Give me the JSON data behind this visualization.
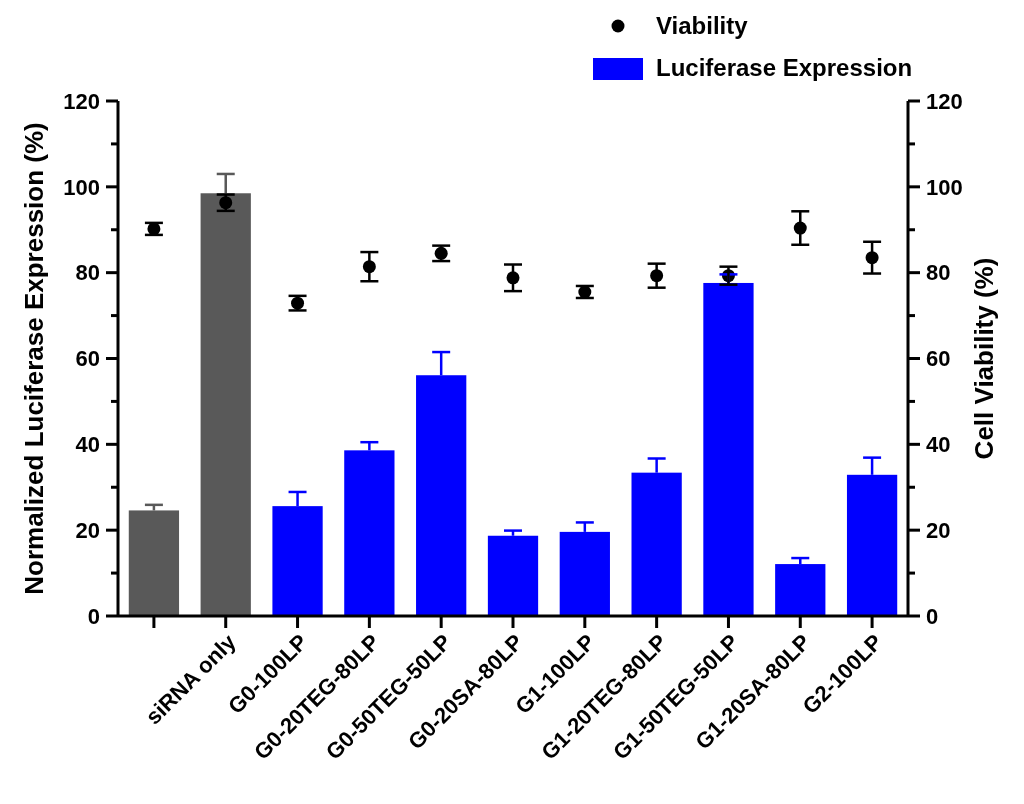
{
  "chart_data": {
    "type": "bar",
    "ylabel": "Normalized Luciferase Expression (%)",
    "y2label": "Cell Viability  (%)",
    "categories": [
      null,
      "siRNA only",
      "G0-100LP",
      "G0-20TEG-80LP",
      "G0-50TEG-50LP",
      "G0-20SA-80LP",
      "G1-100LP",
      "G1-20TEG-80LP",
      "G1-50TEG-50LP",
      "G1-20SA-80LP",
      "G2-100LP"
    ],
    "series": [
      {
        "name": "Luciferase Expression",
        "color": "#0000ff",
        "colors": [
          "#595959",
          "#595959",
          "#0000ff",
          "#0000ff",
          "#0000ff",
          "#0000ff",
          "#0000ff",
          "#0000ff",
          "#0000ff",
          "#0000ff",
          "#0000ff"
        ],
        "values": [
          24.6,
          98.5,
          25.6,
          38.6,
          56.1,
          18.7,
          19.6,
          33.4,
          77.6,
          12.1,
          32.9
        ],
        "errors": [
          1.3,
          4.5,
          3.3,
          1.9,
          5.4,
          1.2,
          2.2,
          3.3,
          2,
          1.4,
          4
        ]
      },
      {
        "name": "Viability",
        "type": "scatter",
        "axis": "y2",
        "color": "#000000",
        "marker": "circle",
        "values": [
          90.2,
          96.3,
          72.9,
          81.4,
          84.5,
          78.8,
          75.5,
          79.3,
          79.3,
          90.4,
          83.5
        ],
        "errors": [
          1.4,
          1.9,
          1.7,
          3.4,
          1.8,
          3.1,
          1.4,
          2.8,
          2.1,
          3.9,
          3.7
        ]
      }
    ],
    "ylim": [
      0,
      120
    ],
    "yticks": [
      0,
      {
        "value": 10,
        "label": null
      },
      20,
      {
        "value": 30,
        "label": null
      },
      40,
      {
        "value": 50,
        "label": null
      },
      60,
      {
        "value": 70,
        "label": null
      },
      80,
      {
        "value": 90,
        "label": null
      },
      100,
      {
        "value": 110,
        "label": null
      },
      120
    ],
    "y2lim": [
      0,
      120
    ],
    "y2ticks": [
      0,
      {
        "value": 10,
        "label": null
      },
      20,
      {
        "value": 30,
        "label": null
      },
      40,
      {
        "value": 50,
        "label": null
      },
      60,
      {
        "value": 70,
        "label": null
      },
      80,
      {
        "value": 90,
        "label": null
      },
      100,
      {
        "value": 110,
        "label": null
      },
      120
    ],
    "legend": "top right",
    "grid": false
  }
}
